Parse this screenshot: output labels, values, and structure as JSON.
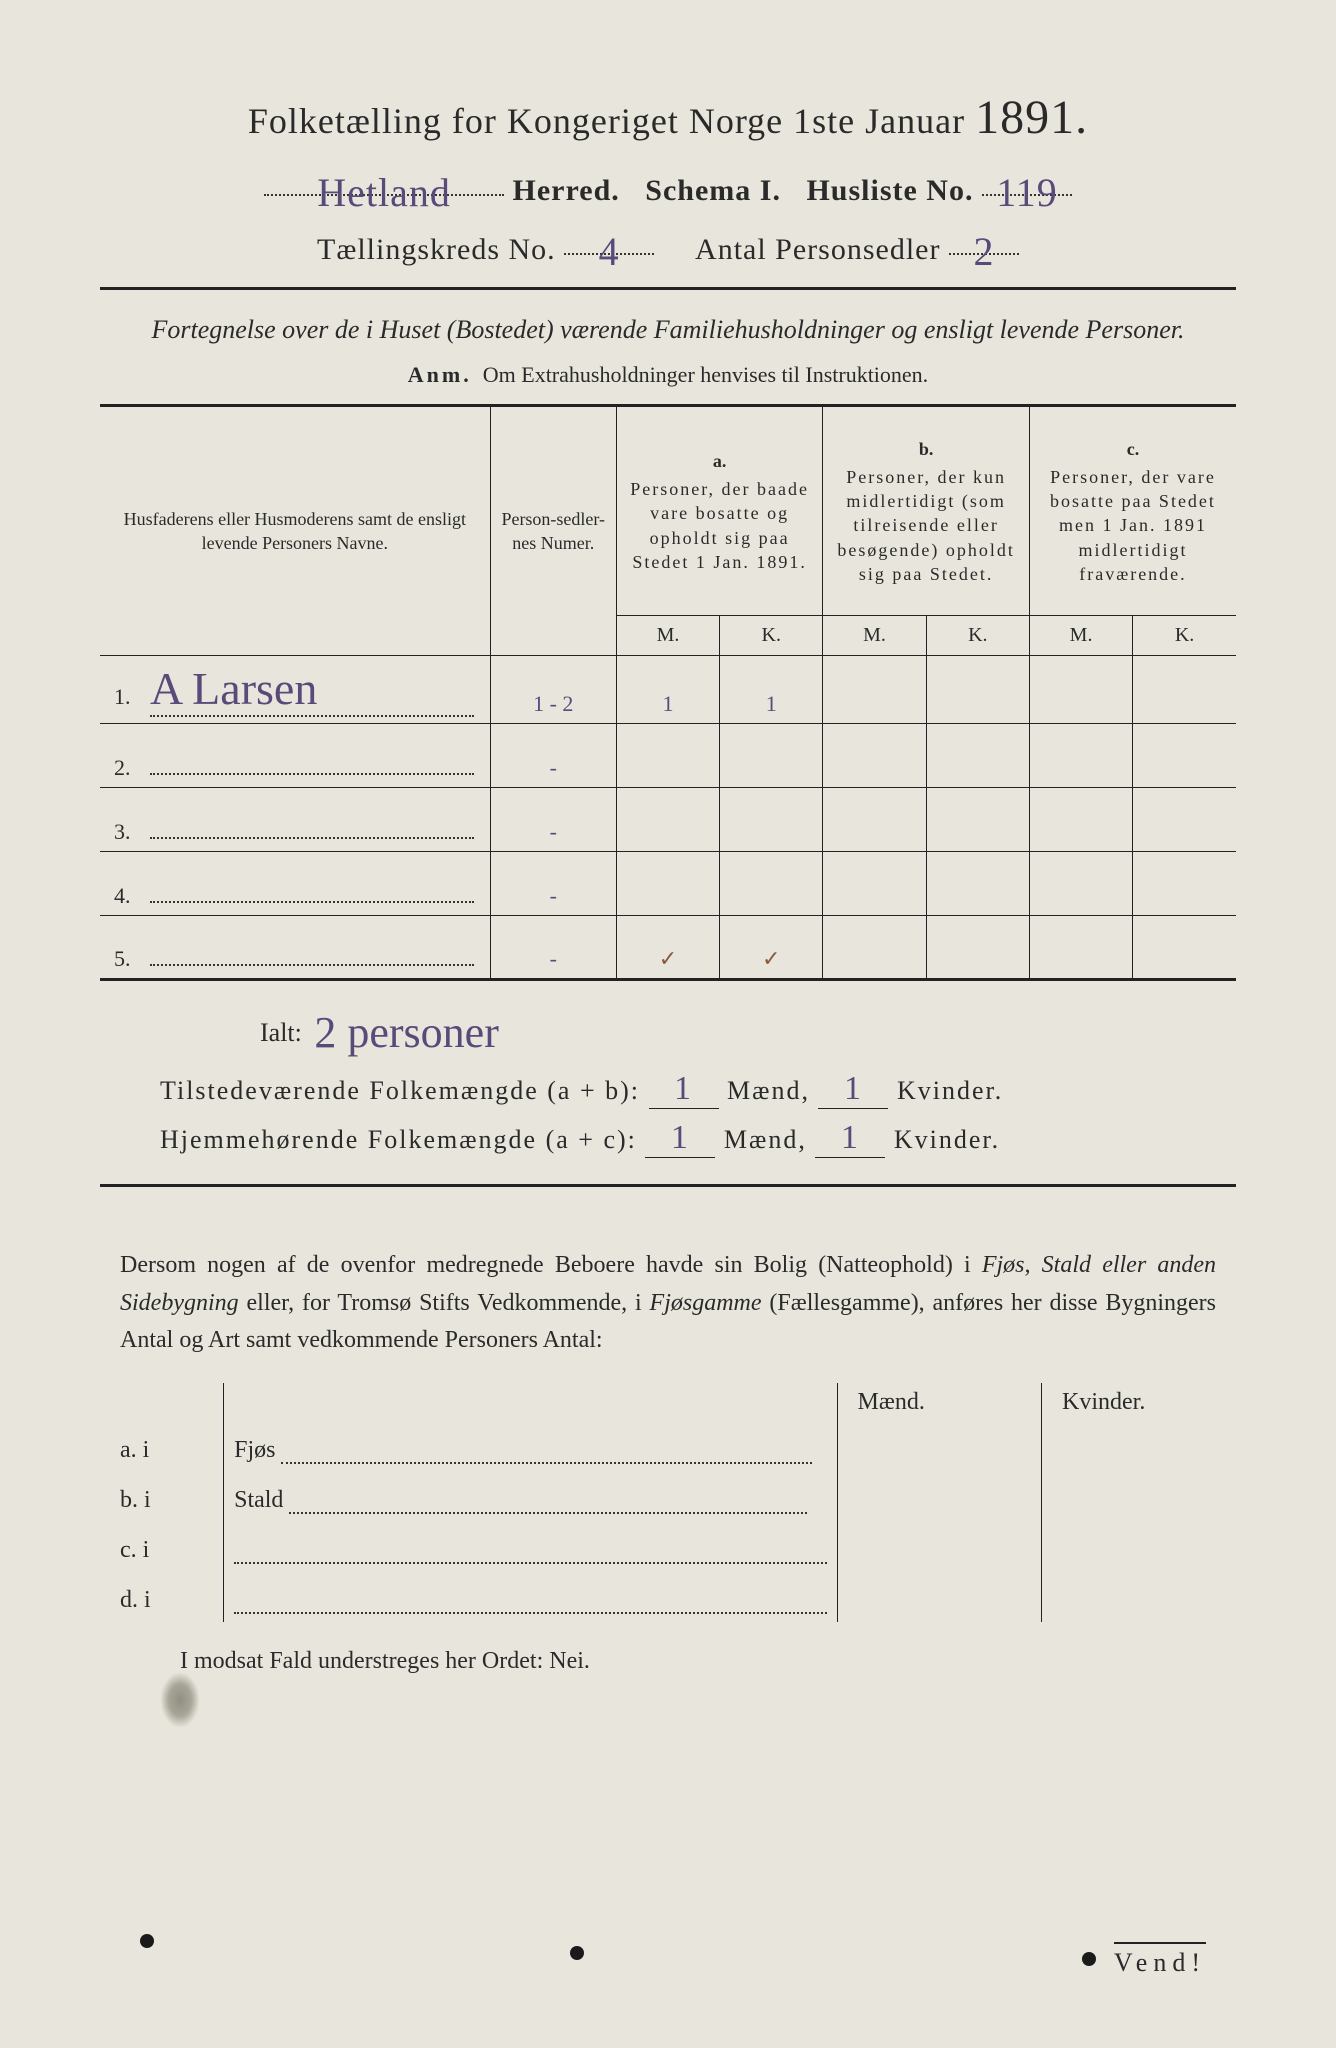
{
  "title": {
    "main_pre": "Folketælling for Kongeriget Norge 1ste Januar ",
    "year": "1891."
  },
  "line2": {
    "herred_hand": "Hetland",
    "herred_lbl": "Herred.",
    "schema_lbl": "Schema I.",
    "husliste_lbl": "Husliste No.",
    "husliste_hand": "119"
  },
  "line3": {
    "kreds_lbl": "Tællingskreds No.",
    "kreds_hand": "4",
    "antal_lbl": "Antal Personsedler",
    "antal_hand": "2"
  },
  "intro": "Fortegnelse over de i Huset (Bostedet) værende Familiehusholdninger og ensligt levende Personer.",
  "anm_lbl": "Anm.",
  "anm_txt": "Om Extrahusholdninger henvises til Instruktionen.",
  "table": {
    "col_name": "Husfaderens eller Husmoderens samt de ensligt levende Personers Navne.",
    "col_numer": "Person-sedler-nes Numer.",
    "col_a_letter": "a.",
    "col_a": "Personer, der baade vare bosatte og opholdt sig paa Stedet 1 Jan. 1891.",
    "col_b_letter": "b.",
    "col_b": "Personer, der kun midlertidigt (som tilreisende eller besøgende) opholdt sig paa Stedet.",
    "col_c_letter": "c.",
    "col_c": "Personer, der vare bosatte paa Stedet men 1 Jan. 1891 midlertidigt fraværende.",
    "M": "M.",
    "K": "K.",
    "rows": [
      {
        "n": "1.",
        "name": "A Larsen",
        "numer": "1 - 2",
        "aM": "1",
        "aK": "1",
        "bM": "",
        "bK": "",
        "cM": "",
        "cK": ""
      },
      {
        "n": "2.",
        "name": "",
        "numer": "-",
        "aM": "",
        "aK": "",
        "bM": "",
        "bK": "",
        "cM": "",
        "cK": ""
      },
      {
        "n": "3.",
        "name": "",
        "numer": "-",
        "aM": "",
        "aK": "",
        "bM": "",
        "bK": "",
        "cM": "",
        "cK": ""
      },
      {
        "n": "4.",
        "name": "",
        "numer": "-",
        "aM": "",
        "aK": "",
        "bM": "",
        "bK": "",
        "cM": "",
        "cK": ""
      },
      {
        "n": "5.",
        "name": "",
        "numer": "-",
        "aM": "✓",
        "aK": "✓",
        "bM": "",
        "bK": "",
        "cM": "",
        "cK": ""
      }
    ]
  },
  "ialt_lbl": "Ialt:",
  "ialt_hand": "2 personer",
  "sum1": {
    "lbl": "Tilstedeværende Folkemængde (a + b):",
    "m": "1",
    "m_lbl": "Mænd,",
    "k": "1",
    "k_lbl": "Kvinder."
  },
  "sum2": {
    "lbl": "Hjemmehørende Folkemængde (a + c):",
    "m": "1",
    "m_lbl": "Mænd,",
    "k": "1",
    "k_lbl": "Kvinder."
  },
  "para": "Dersom nogen af de ovenfor medregnede Beboere havde sin Bolig (Natteophold) i Fjøs, Stald eller anden Sidebygning eller, for Tromsø Stifts Vedkommende, i Fjøsgamme (Fællesgamme), anføres her disse Bygningers Antal og Art samt vedkommende Personers Antal:",
  "bottomhead": {
    "m": "Mænd.",
    "k": "Kvinder."
  },
  "bottomrows": [
    {
      "k": "a. i",
      "lbl": "Fjøs"
    },
    {
      "k": "b. i",
      "lbl": "Stald"
    },
    {
      "k": "c. i",
      "lbl": ""
    },
    {
      "k": "d. i",
      "lbl": ""
    }
  ],
  "nei": "I modsat Fald understreges her Ordet: Nei.",
  "vend": "Vend!"
}
